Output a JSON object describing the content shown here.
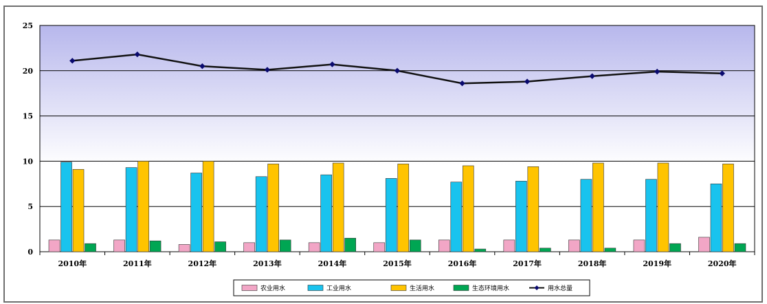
{
  "chart_data": {
    "type": "bar",
    "categories": [
      "2010年",
      "2011年",
      "2012年",
      "2013年",
      "2014年",
      "2015年",
      "2016年",
      "2017年",
      "2018年",
      "2019年",
      "2020年"
    ],
    "series": [
      {
        "name": "农业用水",
        "type": "bar",
        "color": "#f2a6c6",
        "values": [
          1.3,
          1.3,
          0.8,
          1.0,
          1.0,
          1.0,
          1.3,
          1.3,
          1.3,
          1.3,
          1.6
        ]
      },
      {
        "name": "工业用水",
        "type": "bar",
        "color": "#19c3ee",
        "values": [
          9.9,
          9.3,
          8.7,
          8.3,
          8.5,
          8.1,
          7.7,
          7.8,
          8.0,
          8.0,
          7.5
        ]
      },
      {
        "name": "生活用水",
        "type": "bar",
        "color": "#ffc400",
        "values": [
          9.1,
          10.0,
          10.0,
          9.7,
          9.8,
          9.7,
          9.5,
          9.4,
          9.8,
          9.8,
          9.7
        ]
      },
      {
        "name": "生态环境用水",
        "type": "bar",
        "color": "#00a653",
        "values": [
          0.9,
          1.2,
          1.1,
          1.3,
          1.5,
          1.3,
          0.3,
          0.4,
          0.4,
          0.9,
          0.9
        ]
      },
      {
        "name": "用水总量",
        "type": "line",
        "color": "#0a0a6e",
        "values": [
          21.1,
          21.8,
          20.5,
          20.1,
          20.7,
          20.0,
          18.6,
          18.8,
          19.4,
          19.9,
          19.7
        ]
      }
    ],
    "yticks": [
      "0",
      "5",
      "10",
      "15",
      "20",
      "25"
    ],
    "ylim": [
      0,
      25
    ],
    "grid": true,
    "legend_position": "bottom-center"
  }
}
